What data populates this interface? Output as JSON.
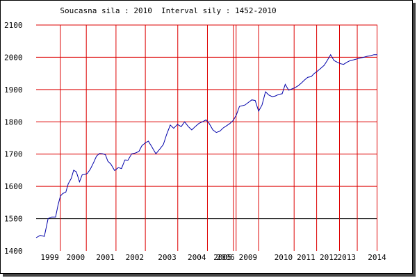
{
  "chart_data": {
    "type": "line",
    "title": "Soucasna sila : 2010  Interval sily : 1452-2010",
    "ylim": [
      1400,
      2100
    ],
    "yticks": [
      1400,
      1500,
      1600,
      1700,
      1800,
      1900,
      2000,
      2100
    ],
    "xlim": [
      0,
      100
    ],
    "xticks": [
      {
        "label": "1999",
        "pos": 7.1
      },
      {
        "label": "2000",
        "pos": 14.7
      },
      {
        "label": "2001",
        "pos": 23.4
      },
      {
        "label": "2002",
        "pos": 32.0
      },
      {
        "label": "2003",
        "pos": 41.5
      },
      {
        "label": "2004",
        "pos": 50.2
      },
      {
        "label": "2005",
        "pos": 57.8
      },
      {
        "label": "2006",
        "pos": 58.6
      },
      {
        "label": "2009",
        "pos": 65.2
      },
      {
        "label": "2010",
        "pos": 75.6
      },
      {
        "label": "2011",
        "pos": 82.2
      },
      {
        "label": "2012",
        "pos": 88.9
      },
      {
        "label": "2013",
        "pos": 94.1
      },
      {
        "label": "2014",
        "pos": 99.9
      }
    ],
    "grid": true,
    "reference_line": 1500,
    "series": [
      {
        "color": "#0000aa",
        "x": [
          0,
          1.2,
          2.4,
          3.5,
          4.5,
          5.7,
          6.4,
          7.1,
          7.8,
          8.7,
          9.4,
          10.3,
          11.0,
          11.8,
          12.7,
          13.5,
          14.2,
          15.0,
          15.9,
          16.8,
          17.7,
          18.6,
          19.5,
          20.3,
          21.0,
          21.9,
          23.0,
          24.1,
          25.0,
          26.0,
          26.9,
          28.0,
          29.0,
          30.1,
          31.0,
          32.0,
          32.9,
          34.0,
          35.1,
          36.2,
          37.3,
          38.2,
          39.3,
          40.3,
          41.4,
          42.5,
          43.5,
          44.6,
          45.6,
          46.6,
          47.7,
          48.7,
          49.8,
          50.7,
          51.8,
          52.8,
          53.8,
          54.8,
          55.8,
          56.8,
          57.8,
          58.7,
          59.6,
          60.4,
          61.2,
          62.2,
          63.2,
          64.2,
          65.2,
          66.2,
          67.2,
          68.2,
          69.2,
          70.1,
          71.1,
          72.1,
          73.0,
          74.0,
          75.0,
          75.9,
          76.8,
          77.7,
          78.7,
          79.6,
          80.6,
          81.5,
          82.3,
          83.3,
          84.4,
          85.3,
          86.3,
          87.3,
          88.2,
          89.2,
          90.1,
          91.1,
          92.1,
          93.0,
          94.0,
          95.0,
          96.0,
          97.0,
          98.0,
          99.0,
          100.0
        ],
        "values": [
          1441,
          1448,
          1445,
          1500,
          1505,
          1505,
          1541,
          1570,
          1578,
          1582,
          1608,
          1625,
          1650,
          1645,
          1614,
          1636,
          1637,
          1640,
          1654,
          1673,
          1694,
          1702,
          1701,
          1698,
          1678,
          1669,
          1649,
          1658,
          1655,
          1682,
          1681,
          1701,
          1703,
          1708,
          1726,
          1735,
          1740,
          1721,
          1701,
          1715,
          1730,
          1760,
          1790,
          1780,
          1792,
          1785,
          1800,
          1785,
          1775,
          1785,
          1795,
          1800,
          1806,
          1795,
          1775,
          1767,
          1771,
          1781,
          1788,
          1795,
          1805,
          1822,
          1848,
          1850,
          1852,
          1860,
          1868,
          1866,
          1833,
          1852,
          1893,
          1883,
          1878,
          1880,
          1885,
          1887,
          1916,
          1898,
          1902,
          1906,
          1912,
          1920,
          1930,
          1938,
          1940,
          1950,
          1956,
          1965,
          1975,
          1990,
          2008,
          1990,
          1985,
          1980,
          1978,
          1985,
          1990,
          1992,
          1995,
          1998,
          2000,
          2003,
          2005,
          2008,
          2008
        ]
      }
    ]
  }
}
